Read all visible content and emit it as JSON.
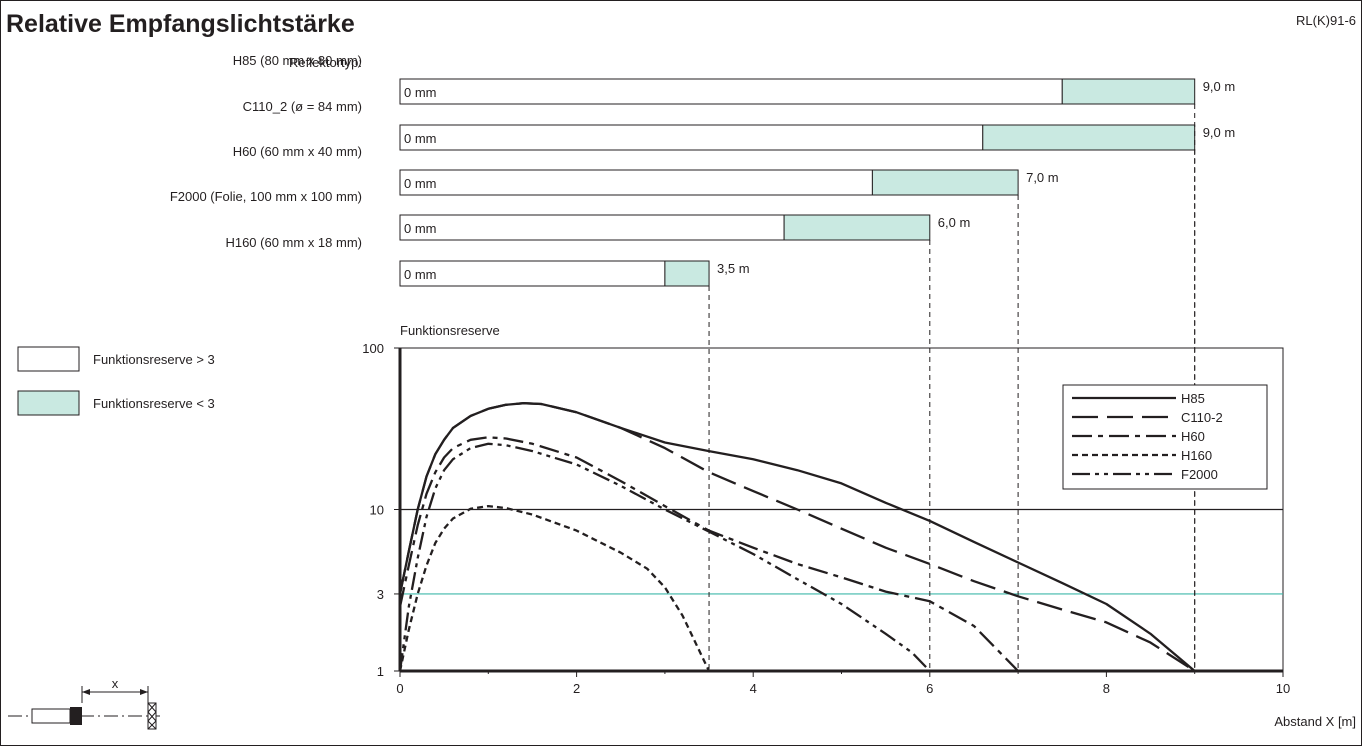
{
  "header": {
    "title": "Relative Empfangslichtstärke",
    "code": "RL(K)91-6"
  },
  "colors": {
    "reserve_low": "#c9e9e1",
    "threshold_line": "#3fb8aa",
    "ink": "#231f20"
  },
  "legend_boxes": {
    "high": "Funktionsreserve > 3",
    "low": "Funktionsreserve < 3"
  },
  "sensor_sketch": {
    "label": "x",
    "icon": "sensor-reflector-icon"
  },
  "reflector_bars": {
    "header": "Reflektortyp:",
    "start_label": "0 mm",
    "unit": "m",
    "rows": [
      {
        "name": "H85 (80 mm x 80 mm)",
        "reserve3_end": 7.5,
        "range_end": 9.0,
        "range_label": "9,0 m"
      },
      {
        "name": "C110_2 (ø = 84 mm)",
        "reserve3_end": 6.6,
        "range_end": 9.0,
        "range_label": "9,0 m"
      },
      {
        "name": "H60 (60 mm x 40 mm)",
        "reserve3_end": 5.35,
        "range_end": 7.0,
        "range_label": "7,0 m"
      },
      {
        "name": "F2000 (Folie, 100 mm x 100 mm)",
        "reserve3_end": 4.35,
        "range_end": 6.0,
        "range_label": "6,0 m"
      },
      {
        "name": "H160 (60 mm x 18 mm)",
        "reserve3_end": 3.0,
        "range_end": 3.5,
        "range_label": "3,5 m"
      }
    ]
  },
  "chart_data": {
    "type": "line",
    "ylabel": "Funktionsreserve",
    "xlabel": "Abstand X [m]",
    "x_scale": "linear",
    "y_scale": "log",
    "xlim": [
      0,
      10
    ],
    "ylim": [
      1,
      100
    ],
    "x_ticks": [
      0,
      2,
      4,
      6,
      8,
      10
    ],
    "x_tick_labels": [
      "0",
      "2",
      "4",
      "6",
      "8",
      "10"
    ],
    "y_ticks": [
      1,
      3,
      10,
      100
    ],
    "y_tick_labels": [
      "1",
      "3",
      "10",
      "100"
    ],
    "threshold": 3,
    "grid": false,
    "legend_position": "top-right",
    "series": [
      {
        "name": "H85",
        "dash": "solid",
        "points": [
          [
            0,
            3
          ],
          [
            0.1,
            5.5
          ],
          [
            0.2,
            10
          ],
          [
            0.3,
            16
          ],
          [
            0.4,
            22
          ],
          [
            0.5,
            27
          ],
          [
            0.6,
            32
          ],
          [
            0.8,
            38
          ],
          [
            1.0,
            42
          ],
          [
            1.2,
            44.5
          ],
          [
            1.4,
            45.5
          ],
          [
            1.6,
            45
          ],
          [
            2.0,
            40
          ],
          [
            2.5,
            32
          ],
          [
            3.0,
            26
          ],
          [
            3.5,
            23
          ],
          [
            4.0,
            20.5
          ],
          [
            4.5,
            17.5
          ],
          [
            5.0,
            14.5
          ],
          [
            5.5,
            11
          ],
          [
            6.0,
            8.5
          ],
          [
            6.5,
            6.3
          ],
          [
            7.0,
            4.7
          ],
          [
            7.5,
            3.5
          ],
          [
            8.0,
            2.6
          ],
          [
            8.5,
            1.7
          ],
          [
            9.0,
            1.0
          ]
        ]
      },
      {
        "name": "C110-2",
        "dash": "long-dash",
        "points": [
          [
            0,
            3
          ],
          [
            0.1,
            5.5
          ],
          [
            0.2,
            10
          ],
          [
            0.3,
            16
          ],
          [
            0.4,
            22
          ],
          [
            0.5,
            27
          ],
          [
            0.6,
            32
          ],
          [
            0.8,
            38
          ],
          [
            1.0,
            42
          ],
          [
            1.2,
            44.5
          ],
          [
            1.4,
            45.5
          ],
          [
            1.6,
            45
          ],
          [
            2.0,
            40
          ],
          [
            2.5,
            32
          ],
          [
            3.0,
            24
          ],
          [
            3.5,
            17
          ],
          [
            4.0,
            13
          ],
          [
            4.5,
            10
          ],
          [
            5.0,
            7.6
          ],
          [
            5.5,
            5.8
          ],
          [
            6.0,
            4.6
          ],
          [
            6.5,
            3.6
          ],
          [
            7.0,
            2.9
          ],
          [
            7.5,
            2.4
          ],
          [
            8.0,
            2.0
          ],
          [
            8.5,
            1.5
          ],
          [
            9.0,
            1.0
          ]
        ]
      },
      {
        "name": "H60",
        "dash": "dash-dot",
        "points": [
          [
            0,
            2.5
          ],
          [
            0.1,
            4.5
          ],
          [
            0.2,
            8
          ],
          [
            0.3,
            12.5
          ],
          [
            0.4,
            17
          ],
          [
            0.5,
            21
          ],
          [
            0.6,
            24
          ],
          [
            0.8,
            27
          ],
          [
            1.0,
            28
          ],
          [
            1.2,
            27.5
          ],
          [
            1.5,
            25.5
          ],
          [
            2.0,
            21
          ],
          [
            2.5,
            15
          ],
          [
            3.0,
            10.5
          ],
          [
            3.5,
            7.4
          ],
          [
            4.0,
            5.8
          ],
          [
            4.5,
            4.6
          ],
          [
            5.0,
            3.8
          ],
          [
            5.5,
            3.1
          ],
          [
            6.0,
            2.7
          ],
          [
            6.5,
            1.9
          ],
          [
            7.0,
            1.0
          ]
        ]
      },
      {
        "name": "H160",
        "dash": "short-dash",
        "points": [
          [
            0,
            1.0
          ],
          [
            0.1,
            1.8
          ],
          [
            0.2,
            3
          ],
          [
            0.3,
            4.5
          ],
          [
            0.4,
            6.2
          ],
          [
            0.5,
            7.6
          ],
          [
            0.6,
            8.8
          ],
          [
            0.8,
            10.1
          ],
          [
            1.0,
            10.5
          ],
          [
            1.2,
            10.2
          ],
          [
            1.5,
            9.3
          ],
          [
            2.0,
            7.4
          ],
          [
            2.5,
            5.4
          ],
          [
            2.8,
            4.3
          ],
          [
            3.0,
            3.3
          ],
          [
            3.2,
            2.2
          ],
          [
            3.4,
            1.3
          ],
          [
            3.5,
            1.0
          ]
        ]
      },
      {
        "name": "F2000",
        "dash": "dash-dot-dot",
        "points": [
          [
            0,
            1.0
          ],
          [
            0.1,
            2.5
          ],
          [
            0.2,
            5
          ],
          [
            0.3,
            9
          ],
          [
            0.4,
            13.5
          ],
          [
            0.5,
            17.5
          ],
          [
            0.6,
            20.5
          ],
          [
            0.8,
            24
          ],
          [
            1.0,
            25.5
          ],
          [
            1.2,
            25
          ],
          [
            1.5,
            23
          ],
          [
            2.0,
            19
          ],
          [
            2.5,
            14
          ],
          [
            3.0,
            10
          ],
          [
            3.5,
            7.3
          ],
          [
            4.0,
            5.3
          ],
          [
            4.5,
            3.7
          ],
          [
            5.0,
            2.6
          ],
          [
            5.5,
            1.7
          ],
          [
            5.8,
            1.3
          ],
          [
            6.0,
            1.0
          ]
        ]
      }
    ]
  }
}
